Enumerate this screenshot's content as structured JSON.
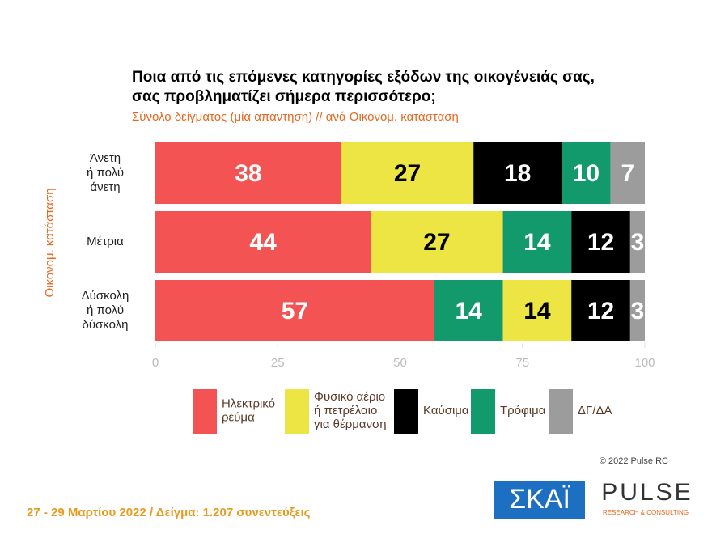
{
  "chart_data": {
    "type": "stacked-barh",
    "title": [
      "Ποια από τις επόμενες κατηγορίες εξόδων της οικογένειάς σας,",
      "σας προβληματίζει σήμερα περισσότερο;"
    ],
    "subtitle": "Σύνολο δείγματος   (μία απάντηση) // ανά Οικονομ. κατάσταση",
    "y_label": "Οικονομ. κατάσταση",
    "categories": [
      "Άνετη\nή πολύ\nάνετη",
      "Μέτρια",
      "Δύσκολη\nή πολύ\nδύσκολη"
    ],
    "series": [
      {
        "name": "Ηλεκτρικό\nρεύμα",
        "color": "#f45353",
        "label_color": "#ffffff",
        "values": [
          38,
          44,
          57
        ]
      },
      {
        "name": "Φυσικό αέριο\nή πετρέλαιο\nγια θέρμανση",
        "color": "#ede544",
        "label_color": "#000000",
        "values": [
          27,
          27,
          14
        ]
      },
      {
        "name": "Καύσιμα",
        "color": "#000000",
        "label_color": "#ffffff",
        "values": [
          18,
          12,
          12
        ]
      },
      {
        "name": "Τρόφιμα",
        "color": "#12996c",
        "label_color": "#ffffff",
        "values": [
          10,
          14,
          14
        ]
      },
      {
        "name": "ΔΓ/ΔΑ",
        "color": "#9c9c9c",
        "label_color": "#ffffff",
        "values": [
          7,
          3,
          3
        ]
      }
    ],
    "stack_order": [
      [
        0,
        1,
        2,
        3,
        4
      ],
      [
        0,
        1,
        3,
        2,
        4
      ],
      [
        0,
        3,
        1,
        2,
        4
      ]
    ],
    "xlim": [
      0,
      100
    ],
    "xticks": [
      0,
      25,
      50,
      75,
      100
    ],
    "copyright": "© 2022 Pulse RC",
    "footer": "27 - 29  Μαρτίου  2022  /  Δείγμα:  1.207  συνεντεύξεις",
    "logos": [
      "ΣΚΑΪ",
      "PULSE",
      "RESEARCH & CONSULTING"
    ]
  }
}
